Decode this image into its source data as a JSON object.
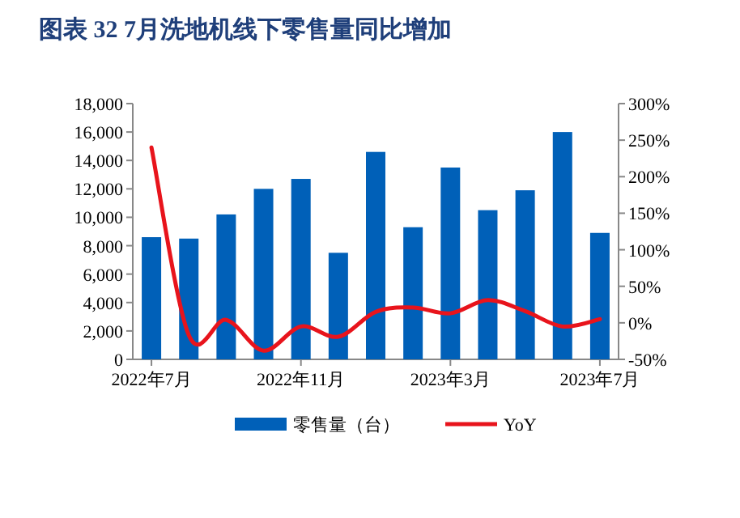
{
  "chart_data": {
    "type": "bar",
    "title": "图表 32   7月洗地机线下零售量同比增加",
    "categories": [
      "2022年7月",
      null,
      null,
      null,
      "2022年11月",
      null,
      null,
      null,
      "2023年3月",
      null,
      null,
      null,
      "2023年7月"
    ],
    "series": [
      {
        "name": "零售量（台）",
        "color": "#0060b8",
        "values": [
          8600,
          8500,
          10200,
          12000,
          12700,
          7500,
          14600,
          9300,
          13500,
          10500,
          11900,
          16000,
          8900
        ]
      },
      {
        "name": "YoY",
        "type": "line",
        "axis": "y2",
        "color": "#e8141c",
        "values": [
          240,
          -17,
          4,
          -38,
          -5,
          -19,
          15,
          21,
          13,
          31,
          16,
          -5,
          5
        ]
      }
    ],
    "ylim": [
      0,
      18000
    ],
    "yticks": [
      {
        "value": 0,
        "label": "0"
      },
      {
        "value": 2000,
        "label": "2,000"
      },
      {
        "value": 4000,
        "label": "4,000"
      },
      {
        "value": 6000,
        "label": "6,000"
      },
      {
        "value": 8000,
        "label": "8,000"
      },
      {
        "value": 10000,
        "label": "10,000"
      },
      {
        "value": 12000,
        "label": "12,000"
      },
      {
        "value": 14000,
        "label": "14,000"
      },
      {
        "value": 16000,
        "label": "16,000"
      },
      {
        "value": 18000,
        "label": "18,000"
      }
    ],
    "y2lim": [
      -50,
      300
    ],
    "y2ticks": [
      {
        "value": -50,
        "label": "-50%"
      },
      {
        "value": 0,
        "label": "0%"
      },
      {
        "value": 50,
        "label": "50%"
      },
      {
        "value": 100,
        "label": "100%"
      },
      {
        "value": 150,
        "label": "150%"
      },
      {
        "value": 200,
        "label": "200%"
      },
      {
        "value": 250,
        "label": "250%"
      },
      {
        "value": 300,
        "label": "300%"
      }
    ],
    "legend": "bottom"
  }
}
